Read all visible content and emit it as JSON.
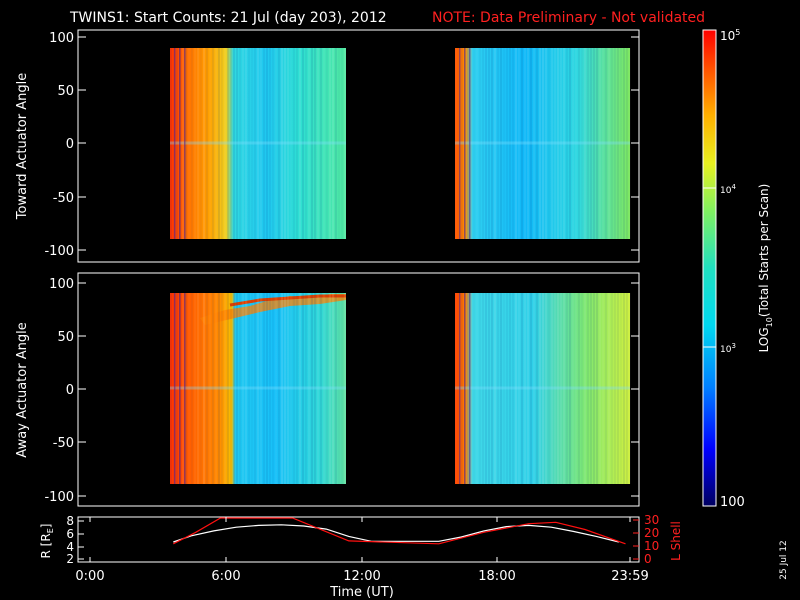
{
  "title": {
    "main": "TWINS1: Start Counts: 21 Jul (day 203), 2012",
    "note": "NOTE: Data Preliminary - Not validated",
    "note_color": "#ff2020"
  },
  "date_stamp": "25 Jul 12",
  "colorbar": {
    "label": "LOG10(Total Starts per Scan)",
    "label_parts": [
      "LOG",
      "10",
      "(Total Starts per Scan)"
    ],
    "ticks": [
      {
        "base": "10",
        "exp": "5",
        "log": 5
      },
      {
        "base": "10",
        "exp": "4",
        "log": 4
      },
      {
        "base": "10",
        "exp": "3",
        "log": 3
      },
      {
        "base": "100",
        "exp": "",
        "log": 2
      }
    ],
    "range_log": [
      2,
      5
    ],
    "scale": "log"
  },
  "chart_data": [
    {
      "type": "heatmap",
      "ylabel": "Toward Actuator Angle",
      "ylim": [
        -100,
        100
      ],
      "y_ticks": [
        "100",
        "50",
        "0",
        "-50",
        "-100"
      ],
      "xlim_hours": [
        0,
        24
      ],
      "data_intervals_hours": [
        [
          3.7,
          11.6
        ],
        [
          15.9,
          24.0
        ]
      ],
      "description_values": "log10 counts: ~4.7 (red) near start of each interval, falling to ~3.2 (cyan) later"
    },
    {
      "type": "heatmap",
      "ylabel": "Away Actuator Angle",
      "ylim": [
        -100,
        100
      ],
      "y_ticks": [
        "100",
        "50",
        "0",
        "-50",
        "-100"
      ],
      "xlim_hours": [
        0,
        24
      ],
      "data_intervals_hours": [
        [
          3.7,
          11.6
        ],
        [
          15.9,
          24.0
        ]
      ]
    },
    {
      "type": "line",
      "xlabel": "Time (UT)",
      "x_ticks": [
        "0:00",
        "6:00",
        "12:00",
        "18:00",
        "23:59"
      ],
      "x_tick_hours": [
        0,
        6,
        12,
        18,
        23.98
      ],
      "ylabel_left": "R [RE]",
      "ylabel_left_parts": [
        "R [R",
        "E",
        "]"
      ],
      "ylim_left": [
        1.5,
        8.5
      ],
      "y_ticks_left": [
        "8",
        "6",
        "4",
        "2"
      ],
      "ylabel_right": "L Shell",
      "ylim_right": [
        0,
        30
      ],
      "y_ticks_right": [
        "30",
        "20",
        "10",
        "0"
      ],
      "series": [
        {
          "color": "#ffffff",
          "axis": "left",
          "x": [
            3.7,
            4.5,
            5.5,
            6.5,
            7.5,
            8.5,
            9.5,
            10.5,
            11.5,
            12.5,
            13.5,
            14.5,
            15.5,
            16.5,
            17.5,
            18.5,
            19.5,
            20.5,
            21.5,
            22.5,
            23.5
          ],
          "y": [
            4.6,
            5.6,
            6.4,
            7.0,
            7.3,
            7.4,
            7.2,
            6.7,
            5.5,
            4.7,
            4.7,
            4.7,
            4.7,
            5.4,
            6.4,
            7.1,
            7.3,
            7.0,
            6.3,
            5.5,
            4.6
          ]
        },
        {
          "name": "L Shell",
          "color": "#ff1010",
          "axis": "right",
          "x": [
            3.7,
            4.7,
            5.8,
            9.0,
            11.5,
            15.5,
            17.5,
            19.5,
            20.7,
            22.0,
            23.8
          ],
          "y": [
            12,
            20,
            30,
            30,
            14,
            12,
            20,
            26,
            27,
            22,
            12
          ]
        }
      ]
    }
  ]
}
